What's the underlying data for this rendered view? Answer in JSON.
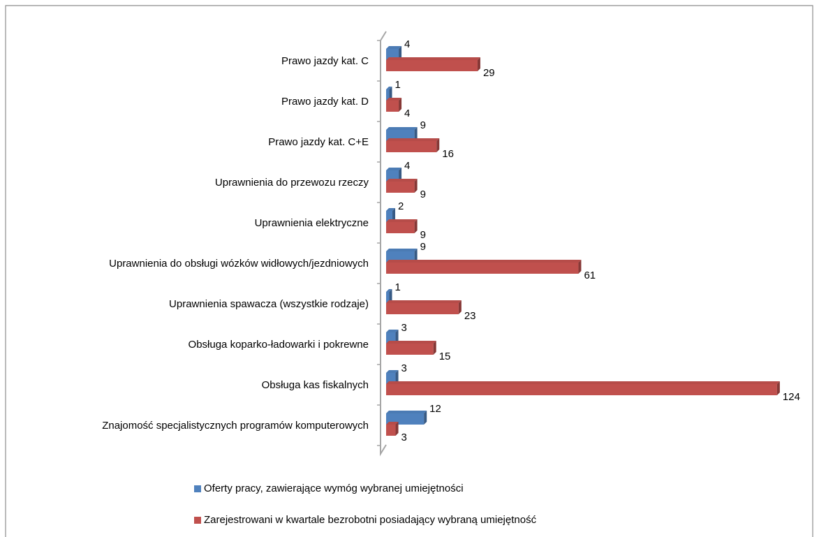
{
  "chart_data": {
    "type": "bar",
    "orientation": "horizontal",
    "categories": [
      "Prawo jazdy kat. C",
      "Prawo jazdy kat. D",
      "Prawo jazdy kat. C+E",
      "Uprawnienia do przewozu rzeczy",
      "Uprawnienia elektryczne",
      "Uprawnienia do obsługi wózków widłowych/jezdniowych",
      "Uprawnienia spawacza (wszystkie rodzaje)",
      "Obsługa koparko-ładowarki i pokrewne",
      "Obsługa kas fiskalnych",
      "Znajomość specjalistycznych programów komputerowych"
    ],
    "series": [
      {
        "name": "Oferty pracy, zawierające wymóg wybranej umiejętności",
        "color": "#4f81bd",
        "values": [
          4,
          1,
          9,
          4,
          2,
          9,
          1,
          3,
          3,
          12
        ]
      },
      {
        "name": "Zarejestrowani w kwartale bezrobotni posiadający wybraną umiejętność",
        "color": "#c0504d",
        "values": [
          29,
          4,
          16,
          9,
          9,
          61,
          23,
          15,
          124,
          3
        ]
      }
    ],
    "xlim": [
      0,
      130
    ],
    "legend": "bottom"
  }
}
